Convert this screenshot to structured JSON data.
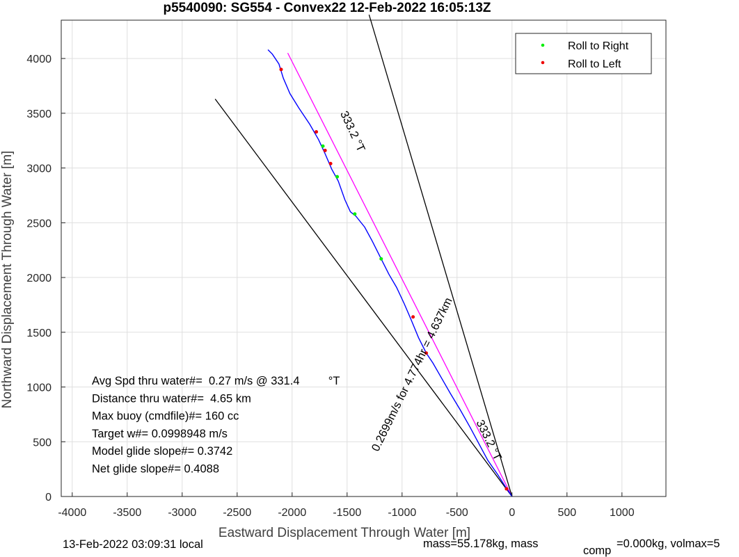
{
  "chart_data": {
    "type": "line",
    "title": "p5540090: SG554 - Convex22 12-Feb-2022 16:05:13Z",
    "xlabel": "Eastward Displacement Through Water [m]",
    "ylabel": "Northward Displacement Through Water [m]",
    "xlim": [
      -4100,
      1400
    ],
    "ylim": [
      0,
      4350
    ],
    "xticks": [
      -4000,
      -3500,
      -3000,
      -2500,
      -2000,
      -1500,
      -1000,
      -500,
      0,
      500,
      1000
    ],
    "yticks": [
      0,
      500,
      1000,
      1500,
      2000,
      2500,
      3000,
      3500,
      4000
    ],
    "grid": true,
    "legend": {
      "location": "top-right",
      "entries": [
        {
          "label": "Roll to Right",
          "color": "#00ee00"
        },
        {
          "label": "Roll to Left",
          "color": "#ee0000"
        }
      ]
    },
    "track": {
      "color": "#0000ff",
      "points": [
        [
          0,
          0
        ],
        [
          -60,
          90
        ],
        [
          -130,
          200
        ],
        [
          -220,
          330
        ],
        [
          -300,
          480
        ],
        [
          -380,
          630
        ],
        [
          -470,
          790
        ],
        [
          -560,
          940
        ],
        [
          -640,
          1080
        ],
        [
          -720,
          1220
        ],
        [
          -780,
          1310
        ],
        [
          -850,
          1450
        ],
        [
          -920,
          1620
        ],
        [
          -980,
          1760
        ],
        [
          -1050,
          1910
        ],
        [
          -1120,
          2030
        ],
        [
          -1190,
          2170
        ],
        [
          -1270,
          2330
        ],
        [
          -1340,
          2460
        ],
        [
          -1420,
          2560
        ],
        [
          -1470,
          2600
        ],
        [
          -1520,
          2710
        ],
        [
          -1580,
          2880
        ],
        [
          -1640,
          2990
        ],
        [
          -1700,
          3130
        ],
        [
          -1760,
          3260
        ],
        [
          -1840,
          3400
        ],
        [
          -1940,
          3550
        ],
        [
          -2020,
          3680
        ],
        [
          -2080,
          3820
        ],
        [
          -2120,
          3950
        ],
        [
          -2180,
          4040
        ],
        [
          -2220,
          4080
        ]
      ]
    },
    "reference_lines": [
      {
        "color": "#ff00ff",
        "points": [
          [
            0,
            0
          ],
          [
            -2040,
            4050
          ]
        ]
      },
      {
        "color": "#000000",
        "points": [
          [
            0,
            0
          ],
          [
            -2700,
            3630
          ]
        ]
      },
      {
        "color": "#000000",
        "points": [
          [
            0,
            0
          ],
          [
            -1300,
            4400
          ]
        ]
      }
    ],
    "roll_right_points": [
      [
        -1720,
        3200
      ],
      [
        -1590,
        2920
      ],
      [
        -1430,
        2580
      ],
      [
        -1190,
        2170
      ]
    ],
    "roll_left_points": [
      [
        -2100,
        3900
      ],
      [
        -1780,
        3330
      ],
      [
        -1700,
        3160
      ],
      [
        -1650,
        3040
      ],
      [
        -900,
        1640
      ],
      [
        -780,
        1310
      ],
      [
        -50,
        70
      ]
    ],
    "line_labels": [
      {
        "text": "333.2 °T",
        "x": -1480,
        "y": 3320,
        "rotation": 65
      },
      {
        "text": "0.2699m/s for 4.774hr = 4.637km",
        "x": -880,
        "y": 1100,
        "rotation": -64
      },
      {
        "text": "333.2 °T",
        "x": -240,
        "y": 500,
        "rotation": 64
      }
    ],
    "stats": [
      "Avg Spd thru water#=  0.27 m/s @ 331.4         °T",
      "Distance thru water#=  4.65 km",
      "Max buoy (cmdfile)#= 160 cc",
      "Target w#= 0.0998948 m/s",
      "Model glide slope#= 0.3742",
      "Net glide slope#= 0.4088"
    ],
    "footer_left": "13-Feb-2022 03:09:31 local",
    "footer_right": "mass=55.178kg, mass",
    "footer_sub": "comp",
    "footer_right2": "=0.000kg, volmax=5"
  }
}
